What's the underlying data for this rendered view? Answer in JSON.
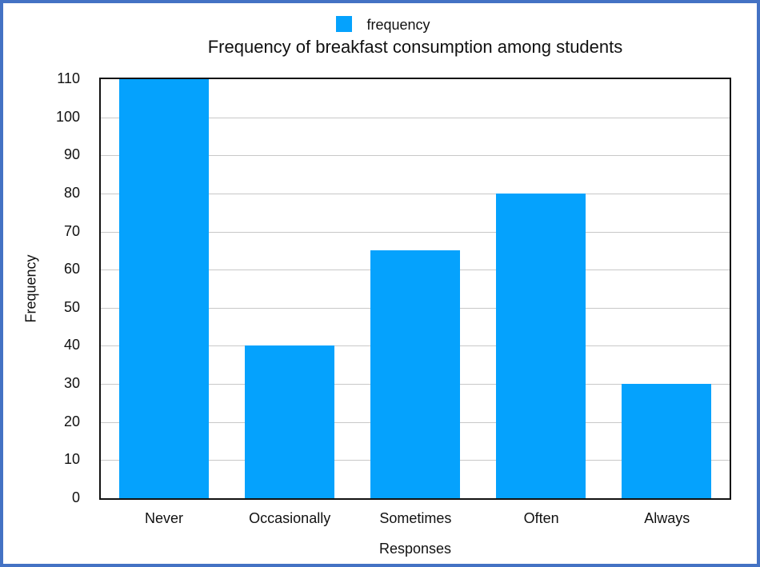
{
  "chart_data": {
    "type": "bar",
    "title": "Frequency of breakfast consumption among students",
    "xlabel": "Responses",
    "ylabel": "Frequency",
    "categories": [
      "Never",
      "Occasionally",
      "Sometimes",
      "Often",
      "Always"
    ],
    "series": [
      {
        "name": "frequency",
        "color": "#05a2fd",
        "values": [
          110,
          40,
          65,
          80,
          30
        ]
      }
    ],
    "ylim": [
      0,
      110
    ],
    "yticks": [
      0,
      10,
      20,
      30,
      40,
      50,
      60,
      70,
      80,
      90,
      100,
      110
    ],
    "grid": true,
    "legend_position": "top"
  },
  "frame_color": "#4472c4"
}
